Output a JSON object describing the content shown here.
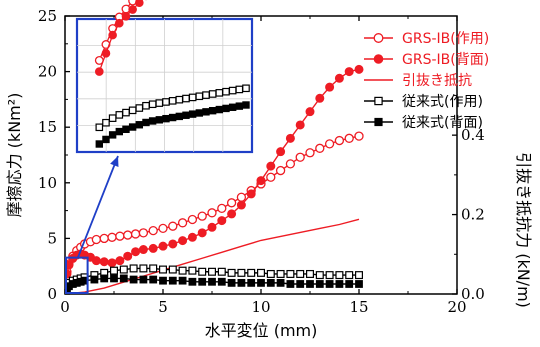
{
  "colors": {
    "red": "#ee1c24",
    "black": "#000000",
    "blue": "#1f3fc7"
  },
  "chart_data": {
    "type": "line",
    "xlabel": "水平変位 (mm)",
    "ylabel_left": "摩擦応力 (kNm²)",
    "ylabel_right": "引抜き抵抗力 (kN/m)",
    "xlim": [
      0,
      20
    ],
    "ylim_left": [
      0,
      25
    ],
    "ylim_right": [
      0,
      0.7
    ],
    "x_ticks": [
      "0",
      "5",
      "10",
      "15",
      "20"
    ],
    "y_left_ticks": [
      "0",
      "5",
      "10",
      "15",
      "20",
      "25"
    ],
    "y_right_ticks": [
      "0.0",
      "0.2",
      "0.4"
    ],
    "legend_position": "top-right",
    "series": [
      {
        "name": "GRS-IB(作用)",
        "axis": "left",
        "color": "#ee1c24",
        "marker": "open-circle",
        "x": [
          0.1,
          0.2,
          0.4,
          0.6,
          0.8,
          1.0,
          1.3,
          1.6,
          2.0,
          2.4,
          2.8,
          3.2,
          3.6,
          4.0,
          4.5,
          5.0,
          5.5,
          6.0,
          6.5,
          7.0,
          7.5,
          8.0,
          8.5,
          9.0,
          9.5,
          10.0,
          10.5,
          11.0,
          11.5,
          12.0,
          12.5,
          13.0,
          13.5,
          14.0,
          14.5,
          15.0
        ],
        "y": [
          2.0,
          2.7,
          3.4,
          3.9,
          4.2,
          4.5,
          4.7,
          4.9,
          5.0,
          5.1,
          5.2,
          5.3,
          5.4,
          5.5,
          5.7,
          5.9,
          6.1,
          6.4,
          6.7,
          7.0,
          7.3,
          7.7,
          8.2,
          8.7,
          9.3,
          9.9,
          10.5,
          11.1,
          11.7,
          12.3,
          12.7,
          13.1,
          13.5,
          13.8,
          14.0,
          14.2
        ]
      },
      {
        "name": "GRS-IB(背面)",
        "axis": "left",
        "color": "#ee1c24",
        "marker": "filled-circle",
        "x": [
          0.1,
          0.2,
          0.4,
          0.6,
          0.8,
          1.0,
          1.3,
          1.6,
          2.0,
          2.4,
          2.8,
          3.2,
          3.6,
          4.0,
          4.5,
          5.0,
          5.5,
          6.0,
          6.5,
          7.0,
          7.5,
          8.0,
          8.5,
          9.0,
          9.5,
          10.0,
          10.5,
          11.0,
          11.5,
          12.0,
          12.5,
          13.0,
          13.5,
          14.0,
          14.5,
          15.0
        ],
        "y": [
          1.8,
          2.6,
          3.2,
          3.5,
          3.6,
          3.5,
          3.3,
          3.0,
          2.9,
          2.8,
          3.0,
          3.4,
          3.8,
          4.0,
          4.1,
          4.3,
          4.5,
          4.8,
          5.1,
          5.5,
          6.0,
          6.6,
          7.2,
          8.0,
          9.0,
          10.2,
          11.5,
          12.8,
          14.0,
          15.2,
          16.4,
          17.6,
          18.6,
          19.4,
          20.0,
          20.2
        ]
      },
      {
        "name": "引抜き抵抗",
        "axis": "right",
        "color": "#ee1c24",
        "marker": "none",
        "x": [
          0,
          1,
          2,
          3,
          4,
          5,
          6,
          7,
          8,
          9,
          10,
          11,
          12,
          13,
          14,
          15
        ],
        "y": [
          0.0,
          0.005,
          0.015,
          0.03,
          0.045,
          0.06,
          0.075,
          0.09,
          0.105,
          0.12,
          0.135,
          0.145,
          0.155,
          0.165,
          0.175,
          0.188
        ]
      },
      {
        "name": "従来式(作用)",
        "axis": "left",
        "color": "#000000",
        "marker": "open-square",
        "x": [
          0.1,
          0.2,
          0.4,
          0.6,
          0.8,
          1.0,
          1.5,
          2.0,
          2.5,
          3.0,
          3.5,
          4.0,
          4.5,
          5.0,
          5.5,
          6.0,
          6.5,
          7.0,
          7.5,
          8.0,
          8.5,
          9.0,
          9.5,
          10.0,
          10.5,
          11.0,
          11.5,
          12.0,
          12.5,
          13.0,
          13.5,
          14.0,
          14.5,
          15.0
        ],
        "y": [
          0.8,
          1.0,
          1.2,
          1.3,
          1.4,
          1.5,
          1.7,
          1.9,
          2.1,
          2.2,
          2.3,
          2.3,
          2.3,
          2.2,
          2.2,
          2.1,
          2.1,
          2.0,
          2.0,
          2.0,
          1.9,
          1.9,
          1.9,
          1.9,
          1.8,
          1.8,
          1.8,
          1.8,
          1.8,
          1.7,
          1.7,
          1.7,
          1.7,
          1.7
        ]
      },
      {
        "name": "従来式(背面)",
        "axis": "left",
        "color": "#000000",
        "marker": "filled-square",
        "x": [
          0.1,
          0.2,
          0.4,
          0.6,
          0.8,
          1.0,
          1.5,
          2.0,
          2.5,
          3.0,
          3.5,
          4.0,
          4.5,
          5.0,
          5.5,
          6.0,
          6.5,
          7.0,
          7.5,
          8.0,
          8.5,
          9.0,
          9.5,
          10.0,
          10.5,
          11.0,
          11.5,
          12.0,
          12.5,
          13.0,
          13.5,
          14.0,
          14.5,
          15.0
        ],
        "y": [
          0.5,
          0.7,
          0.9,
          1.0,
          1.1,
          1.2,
          1.3,
          1.4,
          1.4,
          1.4,
          1.3,
          1.3,
          1.3,
          1.2,
          1.2,
          1.2,
          1.1,
          1.1,
          1.1,
          1.1,
          1.0,
          1.0,
          1.0,
          1.0,
          1.0,
          1.0,
          0.9,
          0.9,
          0.9,
          0.9,
          0.9,
          0.9,
          0.9,
          0.9
        ]
      }
    ],
    "inset": {
      "highlight_xlim": [
        0,
        1
      ],
      "highlight_ylim": [
        0,
        3
      ]
    }
  }
}
